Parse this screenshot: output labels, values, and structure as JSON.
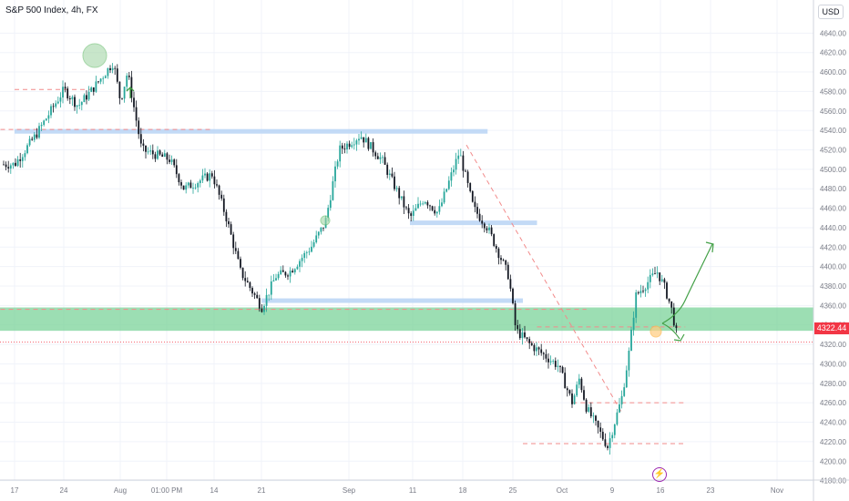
{
  "header": {
    "title": "S&P 500 Index, 4h, FX",
    "currency": "USD"
  },
  "last_price_label": "4322.44",
  "event_icon": "lightning-icon",
  "colors": {
    "up": "#26a69a",
    "down": "#131722",
    "support_zone": "#7bd39a",
    "level_line": "#b9d4f5",
    "dashed_red": "#f28b8b",
    "green_arrow": "#43a047",
    "price_tag": "#f23645",
    "grid": "#f0f3fa"
  },
  "chart_data": {
    "type": "candlestick",
    "title": "S&P 500 Index, 4h, FX",
    "ylim": [
      4170,
      4650
    ],
    "y_ticks": [
      "4640.00",
      "4620.00",
      "4600.00",
      "4580.00",
      "4560.00",
      "4540.00",
      "4520.00",
      "4500.00",
      "4480.00",
      "4460.00",
      "4440.00",
      "4420.00",
      "4400.00",
      "4380.00",
      "4360.00",
      "4340.00",
      "4320.00",
      "4300.00",
      "4280.00",
      "4260.00",
      "4240.00",
      "4220.00",
      "4200.00",
      "4180.00"
    ],
    "x_ticks": [
      "17",
      "24",
      "Aug",
      "01:00 PM",
      "14",
      "21",
      "Sep",
      "11",
      "18",
      "25",
      "Oct",
      "9",
      "16",
      "23",
      "Nov"
    ],
    "price_path": [
      [
        "2023-07-17",
        4505
      ],
      [
        "2023-07-20",
        4535
      ],
      [
        "2023-07-24",
        4582
      ],
      [
        "2023-07-26",
        4565
      ],
      [
        "2023-07-28",
        4582
      ],
      [
        "2023-07-31",
        4610
      ],
      [
        "2023-08-01",
        4570
      ],
      [
        "2023-08-02",
        4600
      ],
      [
        "2023-08-04",
        4520
      ],
      [
        "2023-08-08",
        4510
      ],
      [
        "2023-08-10",
        4480
      ],
      [
        "2023-08-14",
        4495
      ],
      [
        "2023-08-16",
        4450
      ],
      [
        "2023-08-18",
        4395
      ],
      [
        "2023-08-21",
        4358
      ],
      [
        "2023-08-23",
        4390
      ],
      [
        "2023-08-25",
        4395
      ],
      [
        "2023-08-28",
        4420
      ],
      [
        "2023-08-30",
        4445
      ],
      [
        "2023-09-01",
        4520
      ],
      [
        "2023-09-04",
        4535
      ],
      [
        "2023-09-07",
        4510
      ],
      [
        "2023-09-11",
        4450
      ],
      [
        "2023-09-13",
        4470
      ],
      [
        "2023-09-15",
        4455
      ],
      [
        "2023-09-18",
        4518
      ],
      [
        "2023-09-20",
        4460
      ],
      [
        "2023-09-22",
        4440
      ],
      [
        "2023-09-25",
        4390
      ],
      [
        "2023-09-26",
        4335
      ],
      [
        "2023-09-28",
        4320
      ],
      [
        "2023-10-02",
        4298
      ],
      [
        "2023-10-04",
        4260
      ],
      [
        "2023-10-05",
        4285
      ],
      [
        "2023-10-06",
        4255
      ],
      [
        "2023-10-09",
        4215
      ],
      [
        "2023-10-11",
        4265
      ],
      [
        "2023-10-12",
        4310
      ],
      [
        "2023-10-13",
        4370
      ],
      [
        "2023-10-16",
        4395
      ],
      [
        "2023-10-17",
        4380
      ],
      [
        "2023-10-18",
        4358
      ],
      [
        "2023-10-19",
        4322.44
      ]
    ],
    "support_zone": [
      4334,
      4358
    ],
    "horizontal_levels": [
      {
        "from": "2023-07-17",
        "to": "2023-09-22",
        "price": 4539
      },
      {
        "from": "2023-09-11",
        "to": "2023-09-29",
        "price": 4445
      },
      {
        "from": "2023-08-21",
        "to": "2023-09-27",
        "price": 4365
      }
    ],
    "dashed_levels": [
      {
        "from": "2023-07-17",
        "to": "2023-07-28",
        "price": 4582
      },
      {
        "from": "2023-07-15",
        "to": "2023-08-14",
        "price": 4541
      },
      {
        "from": "2023-07-15",
        "to": "2023-10-06",
        "price": 4356
      },
      {
        "from": "2023-09-29",
        "to": "2023-10-20",
        "price": 4338
      },
      {
        "from": "2023-10-04",
        "to": "2023-10-20",
        "price": 4260
      },
      {
        "from": "2023-09-27",
        "to": "2023-10-20",
        "price": 4218
      }
    ],
    "trendline": [
      [
        "2023-09-19",
        4525
      ],
      [
        "2023-10-11",
        4250
      ]
    ],
    "last_price": 4322.44,
    "grid": true
  }
}
